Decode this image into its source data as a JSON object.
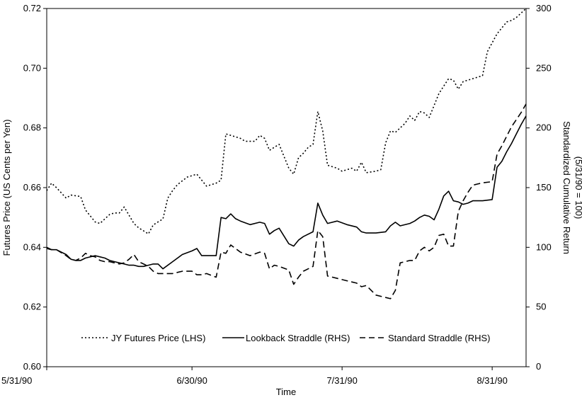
{
  "chart_data": {
    "type": "line",
    "xlabel": "Time",
    "ylabel_left": "Futures Price (US Cents per Yen)",
    "ylabel_right": [
      "Standardized Cumulative Return",
      "(5/31/90 = 100)"
    ],
    "x_tick_labels": [
      "5/31/90",
      "6/30/90",
      "7/31/90",
      "8/31/90"
    ],
    "x_tick_positions": [
      0,
      30,
      61,
      92
    ],
    "xlim": [
      0,
      99
    ],
    "ylim_left": [
      0.6,
      0.72
    ],
    "ylim_right": [
      0,
      300
    ],
    "y_left_ticks": [
      0.6,
      0.62,
      0.64,
      0.66,
      0.68,
      0.7,
      0.72
    ],
    "y_left_tick_labels": [
      "0.60",
      "0.62",
      "0.64",
      "0.66",
      "0.68",
      "0.70",
      "0.72"
    ],
    "y_right_ticks": [
      0,
      50,
      100,
      150,
      200,
      250,
      300
    ],
    "y_right_tick_labels": [
      "0",
      "50",
      "100",
      "150",
      "200",
      "250",
      "300"
    ],
    "grid": false,
    "legend_position": "bottom-center",
    "series": [
      {
        "name": "JY Futures Price (LHS)",
        "axis": "left",
        "style": "dotted",
        "color": "#000000",
        "x": [
          0,
          1,
          2,
          4,
          5,
          7,
          8,
          10,
          11,
          13,
          14,
          15,
          16,
          18,
          19,
          20,
          21,
          22,
          24,
          25,
          26,
          27,
          29,
          30,
          31,
          33,
          34,
          35,
          36,
          37,
          38,
          40,
          41,
          42,
          43,
          44,
          45,
          46,
          47,
          48,
          50,
          51,
          52,
          53,
          54,
          55,
          56,
          57,
          58,
          60,
          61,
          62,
          63,
          64,
          65,
          66,
          68,
          69,
          70,
          71,
          72,
          74,
          75,
          76,
          77,
          78,
          79,
          80,
          81,
          82,
          83,
          84,
          85,
          86,
          87,
          88,
          89,
          90,
          91,
          92,
          93,
          94,
          95,
          96,
          97,
          98,
          99
        ],
        "y": [
          0.659,
          0.6615,
          0.66,
          0.6565,
          0.6575,
          0.657,
          0.6525,
          0.6485,
          0.648,
          0.651,
          0.6515,
          0.6515,
          0.6535,
          0.648,
          0.6465,
          0.6455,
          0.6445,
          0.6475,
          0.6495,
          0.6565,
          0.659,
          0.661,
          0.6635,
          0.664,
          0.6645,
          0.6605,
          0.661,
          0.6615,
          0.6625,
          0.678,
          0.6775,
          0.6765,
          0.6755,
          0.6755,
          0.6755,
          0.6775,
          0.6765,
          0.6725,
          0.6735,
          0.6745,
          0.6665,
          0.6645,
          0.67,
          0.6715,
          0.6735,
          0.6745,
          0.6855,
          0.679,
          0.6675,
          0.6665,
          0.6655,
          0.666,
          0.6665,
          0.6655,
          0.6685,
          0.665,
          0.6655,
          0.666,
          0.675,
          0.679,
          0.6785,
          0.6815,
          0.684,
          0.6825,
          0.6855,
          0.685,
          0.6835,
          0.6875,
          0.6915,
          0.694,
          0.6965,
          0.696,
          0.693,
          0.6955,
          0.696,
          0.6965,
          0.697,
          0.6975,
          0.7055,
          0.7085,
          0.7115,
          0.7135,
          0.7155,
          0.716,
          0.717,
          0.7185,
          0.72
        ]
      },
      {
        "name": "Lookback Straddle (RHS)",
        "axis": "right",
        "style": "solid",
        "color": "#000000",
        "x": [
          0,
          1,
          2,
          4,
          5,
          6,
          7,
          8,
          10,
          11,
          12,
          13,
          14,
          15,
          16,
          17,
          18,
          19,
          20,
          21,
          22,
          23,
          24,
          26,
          28,
          30,
          31,
          32,
          33,
          35,
          36,
          37,
          38,
          39,
          40,
          42,
          44,
          45,
          46,
          47,
          48,
          50,
          51,
          52,
          53,
          55,
          56,
          57,
          58,
          60,
          62,
          64,
          65,
          66,
          68,
          70,
          71,
          72,
          73,
          75,
          76,
          77,
          78,
          79,
          80,
          81,
          82,
          83,
          84,
          85,
          86,
          87,
          88,
          89,
          90,
          92,
          93,
          94,
          95,
          96,
          97,
          98,
          99
        ],
        "y": [
          100,
          98,
          98,
          94,
          90,
          89,
          89,
          91,
          93,
          92,
          91,
          89,
          88,
          87,
          86,
          85,
          85,
          84,
          84,
          85,
          86,
          86,
          82,
          88,
          94,
          97,
          99,
          93,
          93,
          93,
          125,
          124,
          128,
          124,
          122,
          119,
          121,
          120,
          111,
          114,
          116,
          103,
          101,
          106,
          109,
          113,
          137,
          127,
          120,
          122,
          119,
          117,
          113,
          112,
          112,
          113,
          118,
          121,
          118,
          120,
          122,
          125,
          127,
          126,
          123,
          132,
          143,
          147,
          139,
          138,
          136,
          137,
          139,
          139,
          139,
          140,
          167,
          172,
          180,
          187,
          195,
          203,
          210
        ]
      },
      {
        "name": "Standard Straddle (RHS)",
        "axis": "right",
        "style": "dashed",
        "color": "#000000",
        "x": [
          0,
          1,
          2,
          4,
          5,
          6,
          7,
          8,
          9,
          10,
          11,
          12,
          13,
          14,
          15,
          16,
          17,
          18,
          19,
          20,
          21,
          22,
          23,
          24,
          26,
          28,
          30,
          31,
          32,
          33,
          35,
          36,
          37,
          38,
          40,
          42,
          44,
          45,
          46,
          47,
          48,
          50,
          51,
          52,
          53,
          55,
          56,
          57,
          58,
          60,
          62,
          64,
          65,
          66,
          68,
          70,
          71,
          72,
          73,
          75,
          76,
          77,
          78,
          79,
          80,
          81,
          82,
          83,
          84,
          85,
          86,
          87,
          88,
          89,
          90,
          92,
          93,
          94,
          95,
          96,
          97,
          98,
          99
        ],
        "y": [
          99,
          98,
          98,
          93,
          90,
          89,
          91,
          95,
          93,
          92,
          89,
          88,
          88,
          87,
          86,
          87,
          90,
          94,
          88,
          86,
          84,
          80,
          78,
          78,
          78,
          80,
          80,
          77,
          77,
          78,
          75,
          96,
          95,
          102,
          96,
          93,
          96,
          95,
          82,
          85,
          84,
          81,
          69,
          75,
          80,
          84,
          114,
          109,
          76,
          74,
          72,
          70,
          67,
          68,
          60,
          58,
          57,
          64,
          87,
          89,
          89,
          97,
          100,
          97,
          100,
          110,
          111,
          101,
          101,
          130,
          139,
          146,
          152,
          153,
          154,
          155,
          178,
          185,
          193,
          201,
          207,
          213,
          220
        ]
      }
    ]
  }
}
